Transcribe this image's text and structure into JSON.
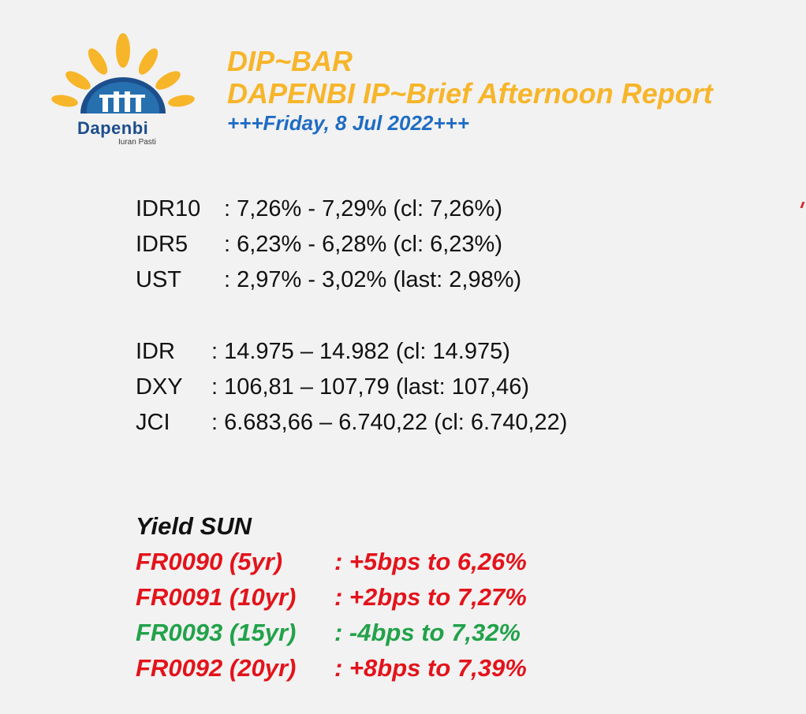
{
  "logo": {
    "name": "Dapenbi",
    "tagline": "Iuran Pasti",
    "colors": {
      "petal": "#f7b52a",
      "arc": "#1d4e8c",
      "arc_light": "#2e8ccc"
    }
  },
  "header": {
    "brand": "DIP~BAR",
    "title": "DAPENBI IP~Brief Afternoon Report",
    "date": "+++Friday, 8 Jul 2022+++"
  },
  "yields": [
    {
      "label": "IDR10",
      "value": ": 7,26% - 7,29% (cl: 7,26%)"
    },
    {
      "label": "IDR5",
      "value": ": 6,23% - 6,28% (cl: 6,23%)"
    },
    {
      "label": "UST",
      "value": ": 2,97% - 3,02% (last: 2,98%)"
    }
  ],
  "markets": [
    {
      "label": "IDR",
      "value": ": 14.975 – 14.982 (cl: 14.975)"
    },
    {
      "label": "DXY",
      "value": ": 106,81 – 107,79 (last: 107,46)"
    },
    {
      "label": "JCI",
      "value": ": 6.683,66 – 6.740,22 (cl: 6.740,22)"
    }
  ],
  "yield_sun": {
    "title": "Yield SUN",
    "rows": [
      {
        "bond": "FR0090 (5yr)",
        "change": ": +5bps to 6,26%",
        "color": "#e3131b"
      },
      {
        "bond": "FR0091 (10yr)",
        "change": ": +2bps to 7,27%",
        "color": "#e3131b"
      },
      {
        "bond": "FR0093 (15yr)",
        "change": ": -4bps to 7,32%",
        "color": "#22a24a"
      },
      {
        "bond": "FR0092 (20yr)",
        "change": ": +8bps to 7,39%",
        "color": "#e3131b"
      }
    ]
  }
}
